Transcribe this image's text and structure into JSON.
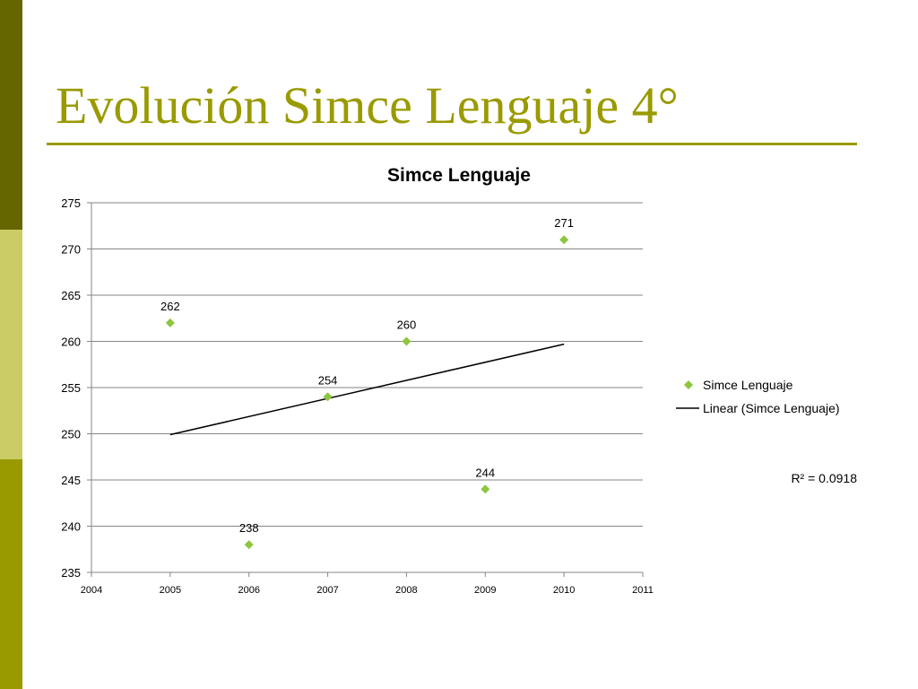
{
  "slide": {
    "title": "Evolución Simce Lenguaje 4°",
    "accent": "#9a9a00",
    "band_colors": [
      "#666600",
      "#cccc66",
      "#999900"
    ]
  },
  "chart_data": {
    "type": "scatter",
    "title": "Simce Lenguaje",
    "xlabel": "",
    "ylabel": "",
    "xlim": [
      2004,
      2011
    ],
    "ylim": [
      235,
      275
    ],
    "x_ticks": [
      2004,
      2005,
      2006,
      2007,
      2008,
      2009,
      2010,
      2011
    ],
    "y_ticks": [
      235,
      240,
      245,
      250,
      255,
      260,
      265,
      270,
      275
    ],
    "grid": "horizontal",
    "marker_color": "#8dc63f",
    "series": [
      {
        "name": "Simce Lenguaje",
        "x": [
          2005,
          2006,
          2007,
          2008,
          2009,
          2010
        ],
        "y": [
          262,
          238,
          254,
          260,
          244,
          271
        ],
        "data_labels": [
          "262",
          "238",
          "254",
          "260",
          "244",
          "271"
        ]
      }
    ],
    "trendline": {
      "name": "Linear (Simce Lenguaje)",
      "type": "linear",
      "x": [
        2005,
        2010
      ],
      "y": [
        249.9,
        259.7
      ],
      "r_squared_label": "R² = 0.0918"
    },
    "legend": {
      "position": "right",
      "entries": [
        "Simce Lenguaje",
        "Linear (Simce Lenguaje)"
      ]
    }
  }
}
